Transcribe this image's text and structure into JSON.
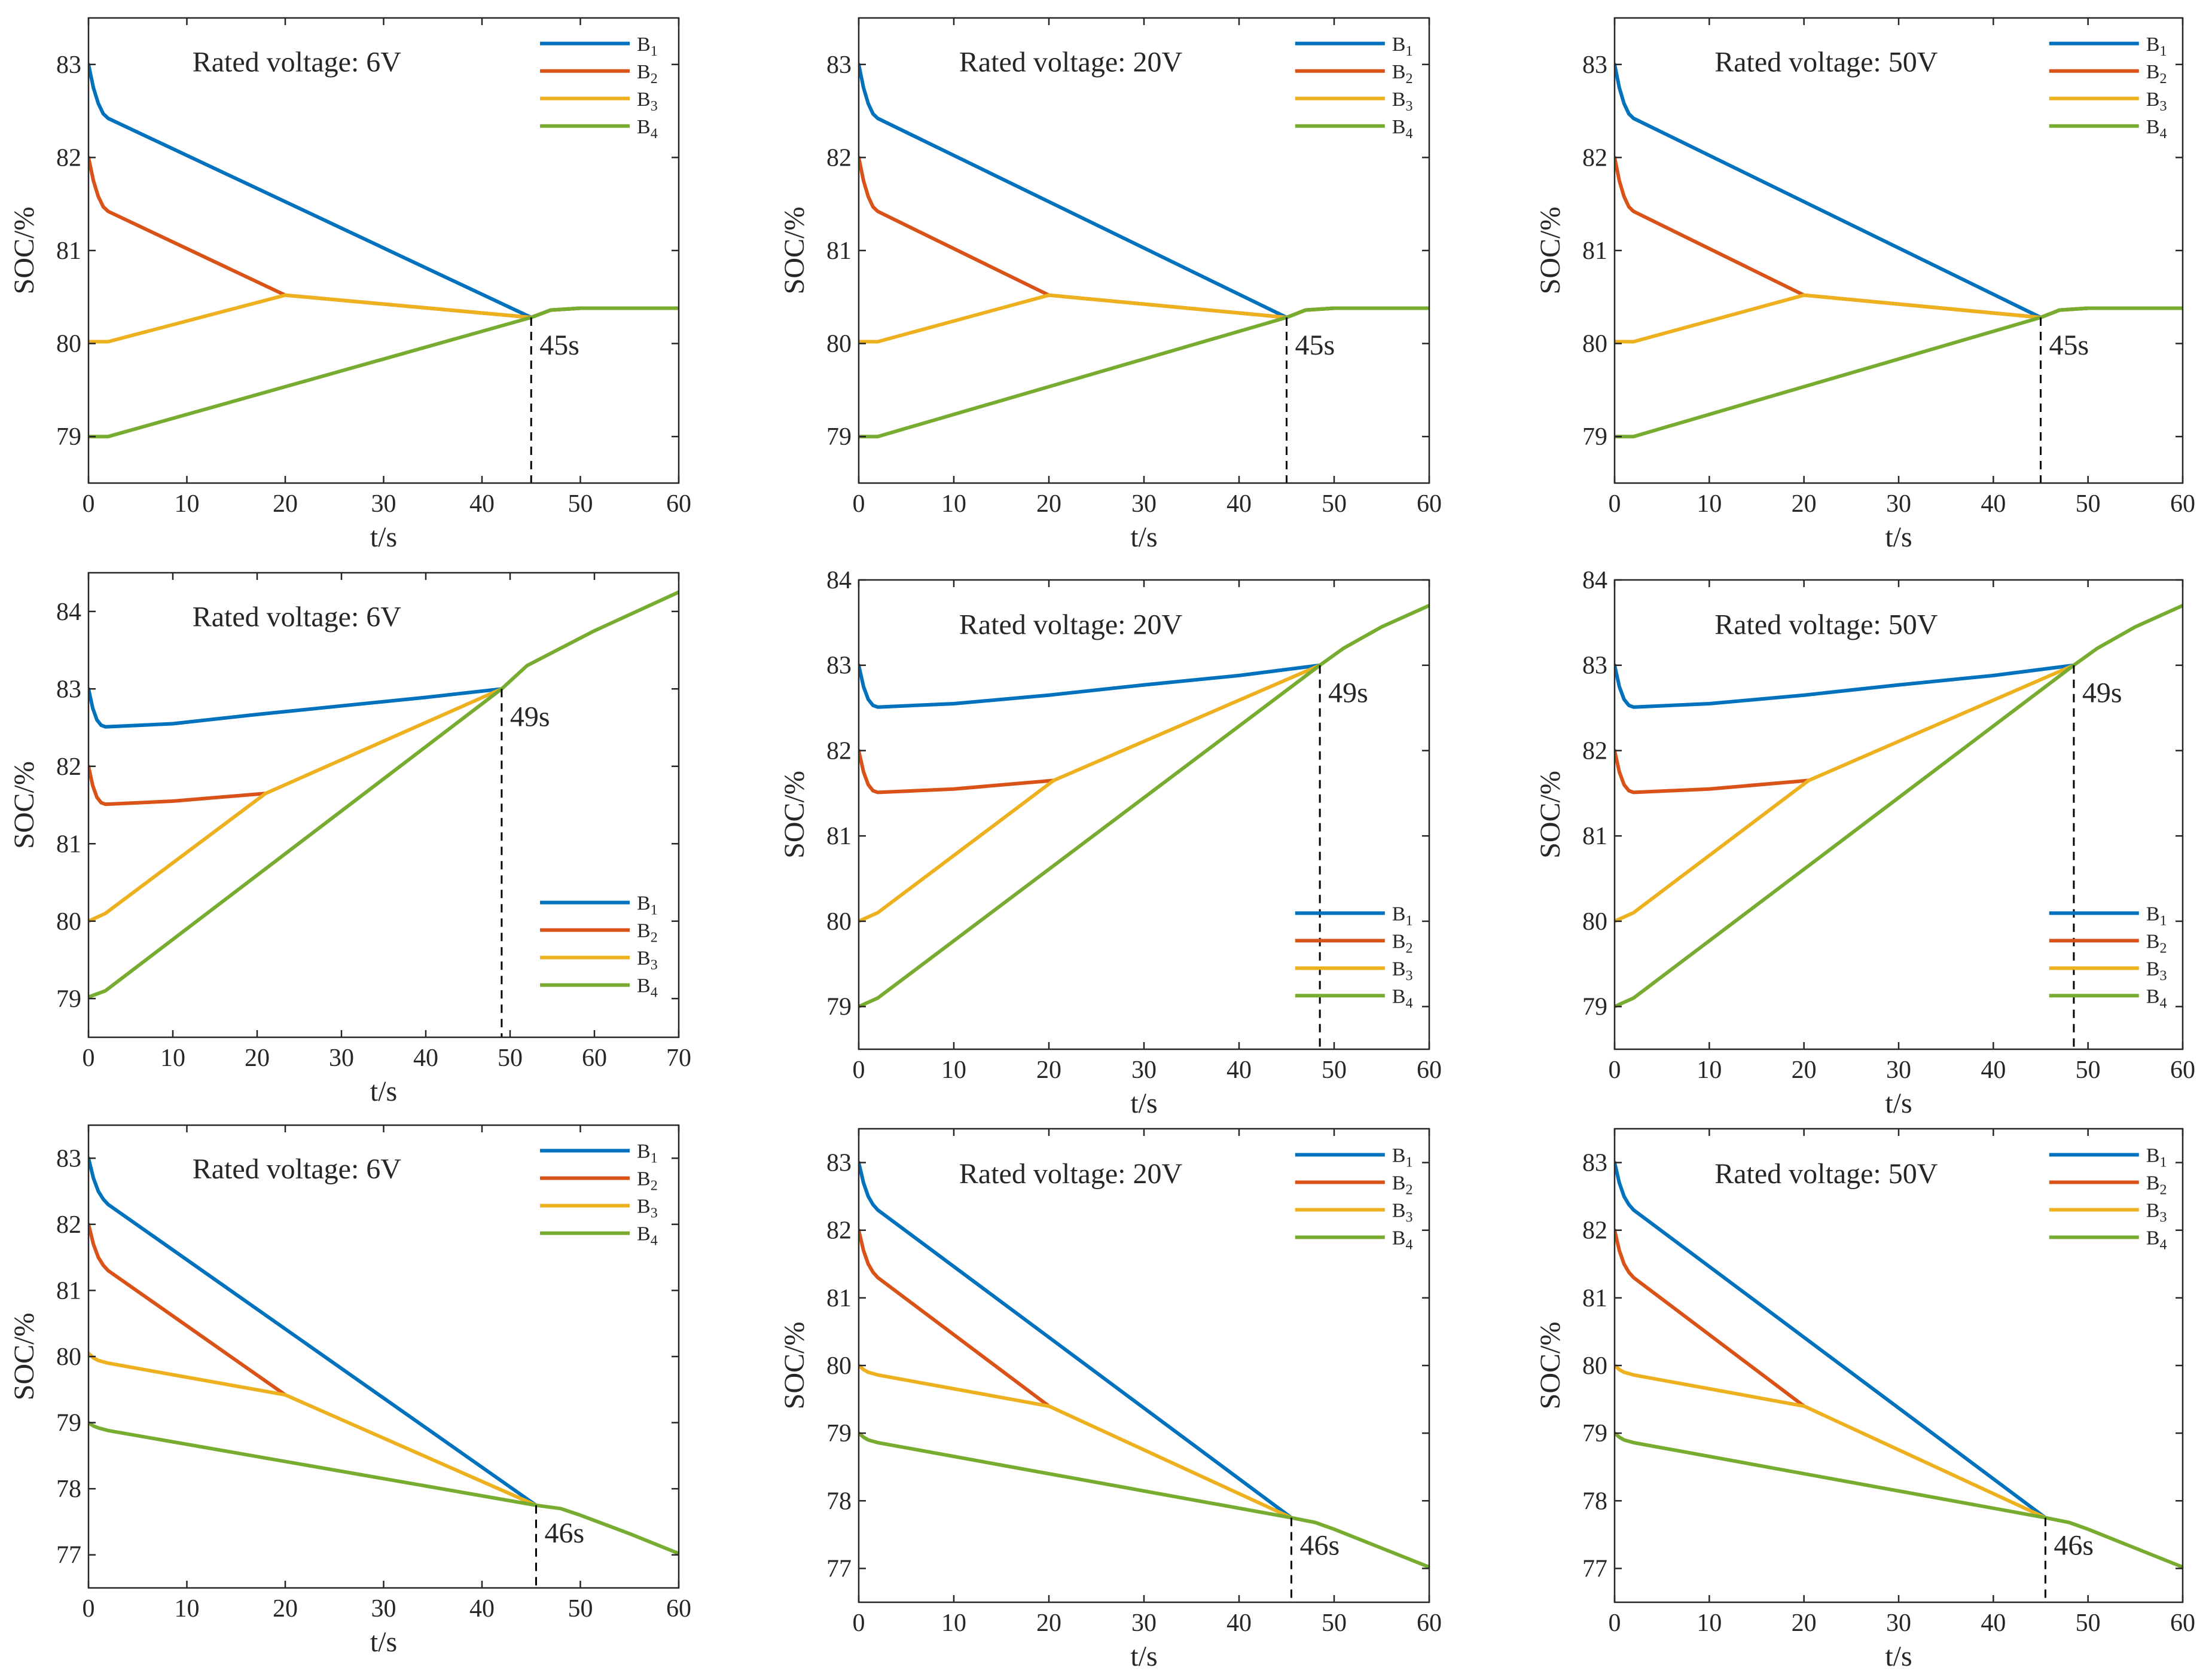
{
  "chart_data": [
    {
      "type": "line",
      "panel": "row1-col1",
      "annotation": "Rated voltage: 6V",
      "xlabel": "t/s",
      "ylabel": "SOC/%",
      "xlim": [
        0,
        60
      ],
      "ylim": [
        78.5,
        83.5
      ],
      "xticks": [
        0,
        10,
        20,
        30,
        40,
        50,
        60
      ],
      "yticks": [
        79,
        80,
        81,
        82,
        83
      ],
      "legend": [
        "B1",
        "B2",
        "B3",
        "B4"
      ],
      "legend_position": "top-right",
      "marker": {
        "x": 45,
        "y": 80.28,
        "label": "45s"
      },
      "series": [
        {
          "name": "B1",
          "color": "#0072BD",
          "x": [
            0,
            0.5,
            1,
            1.5,
            2,
            45,
            47,
            50,
            60
          ],
          "y": [
            83,
            82.75,
            82.58,
            82.47,
            82.42,
            80.28,
            80.36,
            80.38,
            80.38
          ]
        },
        {
          "name": "B2",
          "color": "#D95319",
          "x": [
            0,
            0.5,
            1,
            1.5,
            2,
            20,
            45,
            47,
            50,
            60
          ],
          "y": [
            82,
            81.75,
            81.58,
            81.47,
            81.42,
            80.52,
            80.28,
            80.36,
            80.38,
            80.38
          ]
        },
        {
          "name": "B3",
          "color": "#EDB120",
          "x": [
            0,
            2,
            20,
            45,
            47,
            50,
            60
          ],
          "y": [
            80.02,
            80.02,
            80.52,
            80.28,
            80.36,
            80.38,
            80.38
          ]
        },
        {
          "name": "B4",
          "color": "#77AC30",
          "x": [
            0,
            2,
            45,
            47,
            50,
            60
          ],
          "y": [
            79,
            79,
            80.28,
            80.36,
            80.38,
            80.38
          ]
        }
      ]
    },
    {
      "type": "line",
      "panel": "row1-col2",
      "annotation": "Rated voltage: 20V",
      "xlabel": "t/s",
      "ylabel": "SOC/%",
      "xlim": [
        0,
        60
      ],
      "ylim": [
        78.5,
        83.5
      ],
      "xticks": [
        0,
        10,
        20,
        30,
        40,
        50,
        60
      ],
      "yticks": [
        79,
        80,
        81,
        82,
        83
      ],
      "legend": [
        "B1",
        "B2",
        "B3",
        "B4"
      ],
      "legend_position": "top-right",
      "marker": {
        "x": 45,
        "y": 80.28,
        "label": "45s"
      },
      "series": [
        {
          "name": "B1",
          "color": "#0072BD",
          "x": [
            0,
            0.5,
            1,
            1.5,
            2,
            45,
            47,
            50,
            60
          ],
          "y": [
            83,
            82.75,
            82.58,
            82.47,
            82.42,
            80.28,
            80.36,
            80.38,
            80.38
          ]
        },
        {
          "name": "B2",
          "color": "#D95319",
          "x": [
            0,
            0.5,
            1,
            1.5,
            2,
            20,
            45,
            47,
            50,
            60
          ],
          "y": [
            82,
            81.75,
            81.58,
            81.47,
            81.42,
            80.52,
            80.28,
            80.36,
            80.38,
            80.38
          ]
        },
        {
          "name": "B3",
          "color": "#EDB120",
          "x": [
            0,
            2,
            20,
            45,
            47,
            50,
            60
          ],
          "y": [
            80.02,
            80.02,
            80.52,
            80.28,
            80.36,
            80.38,
            80.38
          ]
        },
        {
          "name": "B4",
          "color": "#77AC30",
          "x": [
            0,
            2,
            45,
            47,
            50,
            60
          ],
          "y": [
            79,
            79,
            80.28,
            80.36,
            80.38,
            80.38
          ]
        }
      ]
    },
    {
      "type": "line",
      "panel": "row1-col3",
      "annotation": "Rated voltage: 50V",
      "xlabel": "t/s",
      "ylabel": "SOC/%",
      "xlim": [
        0,
        60
      ],
      "ylim": [
        78.5,
        83.5
      ],
      "xticks": [
        0,
        10,
        20,
        30,
        40,
        50,
        60
      ],
      "yticks": [
        79,
        80,
        81,
        82,
        83
      ],
      "legend": [
        "B1",
        "B2",
        "B3",
        "B4"
      ],
      "legend_position": "top-right",
      "marker": {
        "x": 45,
        "y": 80.28,
        "label": "45s"
      },
      "series": [
        {
          "name": "B1",
          "color": "#0072BD",
          "x": [
            0,
            0.5,
            1,
            1.5,
            2,
            45,
            47,
            50,
            60
          ],
          "y": [
            83,
            82.75,
            82.58,
            82.47,
            82.42,
            80.28,
            80.36,
            80.38,
            80.38
          ]
        },
        {
          "name": "B2",
          "color": "#D95319",
          "x": [
            0,
            0.5,
            1,
            1.5,
            2,
            20,
            45,
            47,
            50,
            60
          ],
          "y": [
            82,
            81.75,
            81.58,
            81.47,
            81.42,
            80.52,
            80.28,
            80.36,
            80.38,
            80.38
          ]
        },
        {
          "name": "B3",
          "color": "#EDB120",
          "x": [
            0,
            2,
            20,
            45,
            47,
            50,
            60
          ],
          "y": [
            80.02,
            80.02,
            80.52,
            80.28,
            80.36,
            80.38,
            80.38
          ]
        },
        {
          "name": "B4",
          "color": "#77AC30",
          "x": [
            0,
            2,
            45,
            47,
            50,
            60
          ],
          "y": [
            79,
            79,
            80.28,
            80.36,
            80.38,
            80.38
          ]
        }
      ]
    },
    {
      "type": "line",
      "panel": "row2-col1",
      "annotation": "Rated voltage: 6V",
      "xlabel": "t/s",
      "ylabel": "SOC/%",
      "xlim": [
        0,
        70
      ],
      "ylim": [
        78.5,
        84.5
      ],
      "xticks": [
        0,
        10,
        20,
        30,
        40,
        50,
        60,
        70
      ],
      "yticks": [
        79,
        80,
        81,
        82,
        83,
        84
      ],
      "legend": [
        "B1",
        "B2",
        "B3",
        "B4"
      ],
      "legend_position": "bottom-right",
      "marker": {
        "x": 49,
        "y": 83,
        "label": "49s"
      },
      "series": [
        {
          "name": "B1",
          "color": "#0072BD",
          "x": [
            0,
            0.5,
            1,
            1.5,
            2,
            10,
            20,
            30,
            40,
            49
          ],
          "y": [
            83,
            82.75,
            82.6,
            82.53,
            82.51,
            82.55,
            82.67,
            82.78,
            82.89,
            83
          ]
        },
        {
          "name": "B2",
          "color": "#D95319",
          "x": [
            0,
            0.5,
            1,
            1.5,
            2,
            10,
            21
          ],
          "y": [
            82,
            81.75,
            81.6,
            81.53,
            81.51,
            81.55,
            81.65
          ]
        },
        {
          "name": "B3",
          "color": "#EDB120",
          "x": [
            0,
            2,
            21,
            49
          ],
          "y": [
            80,
            80.1,
            81.65,
            83
          ]
        },
        {
          "name": "B4",
          "color": "#77AC30",
          "x": [
            0,
            2,
            49,
            52,
            60,
            70
          ],
          "y": [
            79.02,
            79.1,
            83,
            83.3,
            83.75,
            84.25
          ]
        }
      ]
    },
    {
      "type": "line",
      "panel": "row2-col2",
      "annotation": "Rated voltage: 20V",
      "xlabel": "t/s",
      "ylabel": "SOC/%",
      "xlim": [
        0,
        60
      ],
      "ylim": [
        78.5,
        84
      ],
      "xticks": [
        0,
        10,
        20,
        30,
        40,
        50,
        60
      ],
      "yticks": [
        79,
        80,
        81,
        82,
        83,
        84
      ],
      "legend": [
        "B1",
        "B2",
        "B3",
        "B4"
      ],
      "legend_position": "bottom-right",
      "marker": {
        "x": 48.5,
        "y": 83,
        "label": "49s"
      },
      "series": [
        {
          "name": "B1",
          "color": "#0072BD",
          "x": [
            0,
            0.5,
            1,
            1.5,
            2,
            10,
            20,
            30,
            40,
            48.5
          ],
          "y": [
            83,
            82.75,
            82.6,
            82.53,
            82.51,
            82.55,
            82.65,
            82.77,
            82.88,
            83
          ]
        },
        {
          "name": "B2",
          "color": "#D95319",
          "x": [
            0,
            0.5,
            1,
            1.5,
            2,
            10,
            20.5
          ],
          "y": [
            82,
            81.75,
            81.6,
            81.53,
            81.51,
            81.55,
            81.65
          ]
        },
        {
          "name": "B3",
          "color": "#EDB120",
          "x": [
            0,
            2,
            20.5,
            48.5
          ],
          "y": [
            80,
            80.1,
            81.65,
            83
          ]
        },
        {
          "name": "B4",
          "color": "#77AC30",
          "x": [
            0,
            2,
            48.5,
            51,
            55,
            60
          ],
          "y": [
            79,
            79.1,
            83,
            83.2,
            83.45,
            83.7
          ]
        }
      ]
    },
    {
      "type": "line",
      "panel": "row2-col3",
      "annotation": "Rated voltage: 50V",
      "xlabel": "t/s",
      "ylabel": "SOC/%",
      "xlim": [
        0,
        60
      ],
      "ylim": [
        78.5,
        84
      ],
      "xticks": [
        0,
        10,
        20,
        30,
        40,
        50,
        60
      ],
      "yticks": [
        79,
        80,
        81,
        82,
        83,
        84
      ],
      "legend": [
        "B1",
        "B2",
        "B3",
        "B4"
      ],
      "legend_position": "bottom-right",
      "marker": {
        "x": 48.5,
        "y": 83,
        "label": "49s"
      },
      "series": [
        {
          "name": "B1",
          "color": "#0072BD",
          "x": [
            0,
            0.5,
            1,
            1.5,
            2,
            10,
            20,
            30,
            40,
            48.5
          ],
          "y": [
            83,
            82.75,
            82.6,
            82.53,
            82.51,
            82.55,
            82.65,
            82.77,
            82.88,
            83
          ]
        },
        {
          "name": "B2",
          "color": "#D95319",
          "x": [
            0,
            0.5,
            1,
            1.5,
            2,
            10,
            20.5
          ],
          "y": [
            82,
            81.75,
            81.6,
            81.53,
            81.51,
            81.55,
            81.65
          ]
        },
        {
          "name": "B3",
          "color": "#EDB120",
          "x": [
            0,
            2,
            20.5,
            48.5
          ],
          "y": [
            80,
            80.1,
            81.65,
            83
          ]
        },
        {
          "name": "B4",
          "color": "#77AC30",
          "x": [
            0,
            2,
            48.5,
            51,
            55,
            60
          ],
          "y": [
            79,
            79.1,
            83,
            83.2,
            83.45,
            83.7
          ]
        }
      ]
    },
    {
      "type": "line",
      "panel": "row3-col1",
      "annotation": "Rated voltage: 6V",
      "xlabel": "t/s",
      "ylabel": "SOC/%",
      "xlim": [
        0,
        60
      ],
      "ylim": [
        76.5,
        83.5
      ],
      "xticks": [
        0,
        10,
        20,
        30,
        40,
        50,
        60
      ],
      "yticks": [
        77,
        78,
        79,
        80,
        81,
        82,
        83
      ],
      "legend": [
        "B1",
        "B2",
        "B3",
        "B4"
      ],
      "legend_position": "top-right",
      "marker": {
        "x": 45.5,
        "y": 77.75,
        "label": "46s"
      },
      "series": [
        {
          "name": "B1",
          "color": "#0072BD",
          "x": [
            0,
            0.5,
            1,
            1.5,
            2,
            45.5
          ],
          "y": [
            83,
            82.7,
            82.5,
            82.38,
            82.3,
            77.75
          ]
        },
        {
          "name": "B2",
          "color": "#D95319",
          "x": [
            0,
            0.5,
            1,
            1.5,
            2,
            20
          ],
          "y": [
            82,
            81.7,
            81.5,
            81.38,
            81.3,
            79.42
          ]
        },
        {
          "name": "B3",
          "color": "#EDB120",
          "x": [
            0,
            0.5,
            1,
            2,
            20,
            45.5
          ],
          "y": [
            80.05,
            79.98,
            79.94,
            79.9,
            79.42,
            77.75
          ]
        },
        {
          "name": "B4",
          "color": "#77AC30",
          "x": [
            0,
            0.5,
            1,
            2,
            45.5,
            48,
            50,
            55,
            60
          ],
          "y": [
            79,
            78.95,
            78.92,
            78.88,
            77.75,
            77.7,
            77.6,
            77.32,
            77.02
          ]
        }
      ]
    },
    {
      "type": "line",
      "panel": "row3-col2",
      "annotation": "Rated voltage: 20V",
      "xlabel": "t/s",
      "ylabel": "SOC/%",
      "xlim": [
        0,
        60
      ],
      "ylim": [
        76.5,
        83.5
      ],
      "xticks": [
        0,
        10,
        20,
        30,
        40,
        50,
        60
      ],
      "yticks": [
        77,
        78,
        79,
        80,
        81,
        82,
        83
      ],
      "legend": [
        "B1",
        "B2",
        "B3",
        "B4"
      ],
      "legend_position": "top-right",
      "marker": {
        "x": 45.5,
        "y": 77.75,
        "label": "46s"
      },
      "series": [
        {
          "name": "B1",
          "color": "#0072BD",
          "x": [
            0,
            0.5,
            1,
            1.5,
            2,
            45.5
          ],
          "y": [
            83,
            82.7,
            82.5,
            82.38,
            82.3,
            77.75
          ]
        },
        {
          "name": "B2",
          "color": "#D95319",
          "x": [
            0,
            0.5,
            1,
            1.5,
            2,
            20
          ],
          "y": [
            82,
            81.7,
            81.5,
            81.38,
            81.3,
            79.4
          ]
        },
        {
          "name": "B3",
          "color": "#EDB120",
          "x": [
            0,
            0.5,
            1,
            2,
            20,
            45.5
          ],
          "y": [
            80,
            79.94,
            79.9,
            79.86,
            79.4,
            77.75
          ]
        },
        {
          "name": "B4",
          "color": "#77AC30",
          "x": [
            0,
            0.5,
            1,
            2,
            45.5,
            48,
            50,
            55,
            60
          ],
          "y": [
            79,
            78.94,
            78.9,
            78.86,
            77.75,
            77.68,
            77.58,
            77.3,
            77.02
          ]
        }
      ]
    },
    {
      "type": "line",
      "panel": "row3-col3",
      "annotation": "Rated voltage: 50V",
      "xlabel": "t/s",
      "ylabel": "SOC/%",
      "xlim": [
        0,
        60
      ],
      "ylim": [
        76.5,
        83.5
      ],
      "xticks": [
        0,
        10,
        20,
        30,
        40,
        50,
        60
      ],
      "yticks": [
        77,
        78,
        79,
        80,
        81,
        82,
        83
      ],
      "legend": [
        "B1",
        "B2",
        "B3",
        "B4"
      ],
      "legend_position": "top-right",
      "marker": {
        "x": 45.5,
        "y": 77.75,
        "label": "46s"
      },
      "series": [
        {
          "name": "B1",
          "color": "#0072BD",
          "x": [
            0,
            0.5,
            1,
            1.5,
            2,
            45.5
          ],
          "y": [
            83,
            82.7,
            82.5,
            82.38,
            82.3,
            77.75
          ]
        },
        {
          "name": "B2",
          "color": "#D95319",
          "x": [
            0,
            0.5,
            1,
            1.5,
            2,
            20
          ],
          "y": [
            82,
            81.7,
            81.5,
            81.38,
            81.3,
            79.4
          ]
        },
        {
          "name": "B3",
          "color": "#EDB120",
          "x": [
            0,
            0.5,
            1,
            2,
            20,
            45.5
          ],
          "y": [
            80,
            79.94,
            79.9,
            79.86,
            79.4,
            77.75
          ]
        },
        {
          "name": "B4",
          "color": "#77AC30",
          "x": [
            0,
            0.5,
            1,
            2,
            45.5,
            48,
            50,
            55,
            60
          ],
          "y": [
            79,
            78.94,
            78.9,
            78.86,
            77.75,
            77.68,
            77.58,
            77.3,
            77.02
          ]
        }
      ]
    }
  ]
}
